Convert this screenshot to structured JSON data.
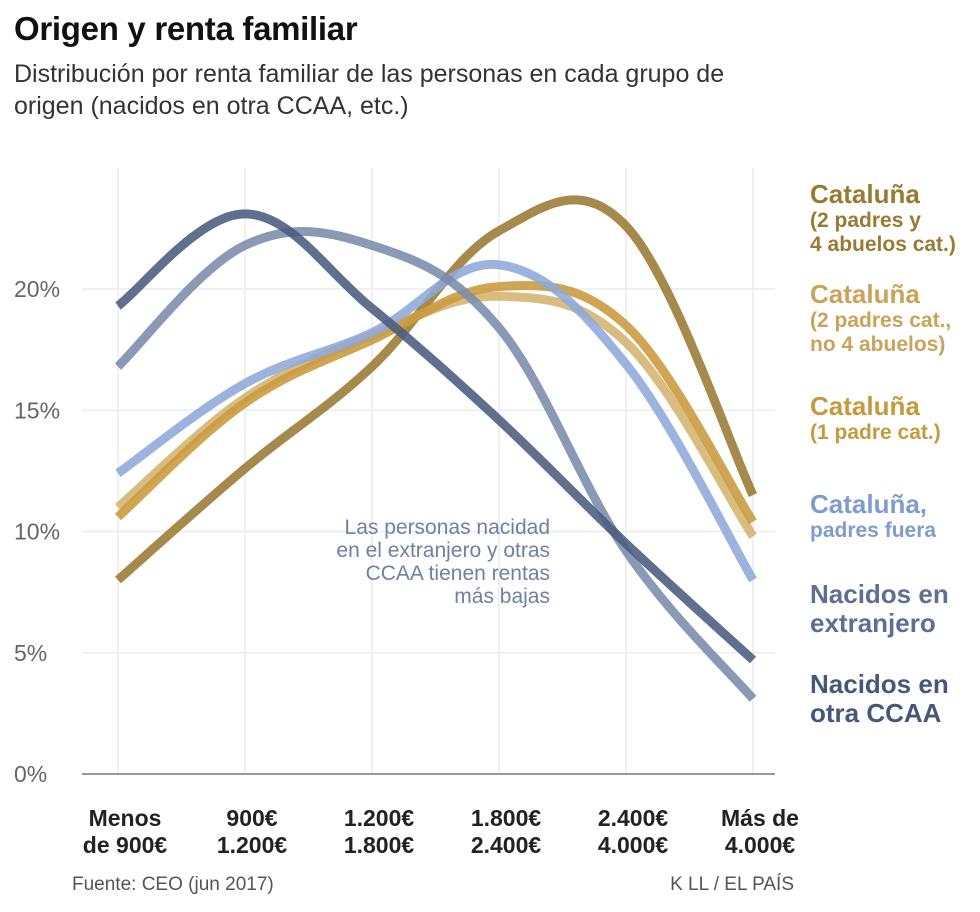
{
  "title": "Origen y renta familiar",
  "subtitle": "Distribución por renta familiar de las personas en cada grupo de origen (nacidos en otra CCAA, etc.)",
  "chart_data": {
    "type": "line",
    "curve": "smooth",
    "y_ticks": [
      "0%",
      "5%",
      "10%",
      "15%",
      "20%"
    ],
    "y_tick_values": [
      0,
      5,
      10,
      15,
      20
    ],
    "ylim": [
      0,
      25
    ],
    "categories": [
      [
        "Menos",
        "de 900€"
      ],
      [
        "900€",
        "1.200€"
      ],
      [
        "1.200€",
        "1.800€"
      ],
      [
        "1.800€",
        "2.400€"
      ],
      [
        "2.400€",
        "4.000€"
      ],
      [
        "Más de",
        "4.000€"
      ]
    ],
    "series": [
      {
        "name": "Cataluña",
        "sub": [
          "(2 padres y",
          "4 abuelos cat.)"
        ],
        "color": "#9a7a33",
        "values": [
          8.0,
          12.6,
          16.8,
          22.4,
          22.6,
          11.5
        ]
      },
      {
        "name": "Cataluña",
        "sub": [
          "(2 padres cat.,",
          "no 4 abuelos)"
        ],
        "color": "#d4b36e",
        "values": [
          11.0,
          15.5,
          18.1,
          19.7,
          17.8,
          9.8
        ]
      },
      {
        "name": "Cataluña",
        "sub": [
          "(1 padre cat.)"
        ],
        "color": "#c99a3c",
        "values": [
          10.6,
          15.3,
          17.9,
          20.1,
          18.5,
          10.4
        ]
      },
      {
        "name": "Cataluña,",
        "sub": [
          "padres fuera"
        ],
        "color": "#8ea9d8",
        "values": [
          12.4,
          16.1,
          18.2,
          21.0,
          16.9,
          8.0
        ]
      },
      {
        "name": "Nacidos en",
        "sub": [
          "extranjero"
        ],
        "color": "#7a8cab",
        "values": [
          16.8,
          21.8,
          21.8,
          18.4,
          9.2,
          3.1
        ]
      },
      {
        "name": "Nacidos en",
        "sub": [
          "otra CCAA"
        ],
        "color": "#4a5b7e",
        "values": [
          19.3,
          23.1,
          19.2,
          14.6,
          9.5,
          4.7
        ]
      }
    ],
    "annotation": [
      "Las personas nacidad",
      "en el extranjero y otras",
      "CCAA tienen rentas",
      "más bajas"
    ]
  },
  "legend": [
    {
      "name": "Cataluña",
      "sub": [
        "(2 padres y",
        "4 abuelos cat.)"
      ],
      "color": "#9a7a33"
    },
    {
      "name": "Cataluña",
      "sub": [
        "(2 padres cat.,",
        "no 4 abuelos)"
      ],
      "color": "#c9a35a"
    },
    {
      "name": "Cataluña",
      "sub": [
        "(1 padre cat.)"
      ],
      "color": "#c59a3f"
    },
    {
      "name": "Cataluña,",
      "sub": [
        "padres fuera"
      ],
      "color": "#7f9ccc"
    },
    {
      "name": "Nacidos en",
      "sub": [
        "extranjero"
      ],
      "color": "#5d6f93"
    },
    {
      "name": "Nacidos en",
      "sub": [
        "otra CCAA"
      ],
      "color": "#46577a"
    }
  ],
  "source": "Fuente: CEO (jun 2017)",
  "credit": "K LL / EL PAÍS"
}
